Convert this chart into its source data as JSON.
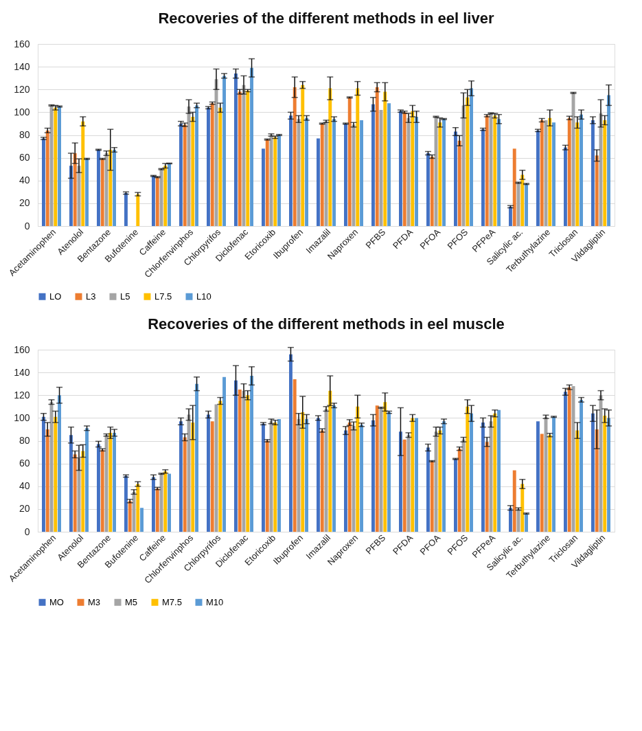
{
  "chart_data": [
    {
      "type": "bar",
      "title": "Recoveries of the different methods in eel liver",
      "ylim": [
        0,
        160
      ],
      "yticks": [
        0,
        20,
        40,
        60,
        80,
        100,
        120,
        140,
        160
      ],
      "grid": "y",
      "legend": "bottom",
      "categories": [
        "Acetaminophen",
        "Atenolol",
        "Bentazone",
        "Bufotenine",
        "Caffeine",
        "Chlorfenvinphos",
        "Chlorpyrifos",
        "Diclofenac",
        "Etoricoxib",
        "Ibuprofen",
        "Imazalil",
        "Naproxen",
        "PFBS",
        "PFDA",
        "PFOA",
        "PFOS",
        "PFPeA",
        "Salicylic ac.",
        "Terbuthylazine",
        "Triclosan",
        "Vildagliptin"
      ],
      "series": [
        {
          "name": "LO",
          "color": "#4472c4",
          "values": [
            77,
            53,
            67,
            29,
            44,
            90,
            104,
            134,
            68,
            97,
            77,
            90,
            107,
            101,
            64,
            83,
            85,
            17,
            84,
            69,
            93
          ],
          "errors": [
            1,
            11,
            0.5,
            1,
            0.5,
            2,
            1,
            4,
            null,
            3,
            null,
            0.5,
            6,
            1,
            1.5,
            3.5,
            1,
            1,
            1,
            2,
            3
          ]
        },
        {
          "name": "L3",
          "color": "#ed7d31",
          "values": [
            84,
            64,
            59,
            0,
            43,
            89,
            108,
            118,
            76,
            122,
            90,
            113,
            122,
            100,
            61,
            75,
            97,
            68,
            93,
            95,
            62
          ],
          "errors": [
            2,
            9,
            0.5,
            null,
            0.5,
            1.5,
            1,
            2,
            0.5,
            9,
            0.5,
            0.5,
            4,
            1,
            1.5,
            4.5,
            1,
            null,
            1.5,
            1.5,
            5
          ]
        },
        {
          "name": "L5",
          "color": "#a5a5a5",
          "values": [
            106,
            53,
            64,
            0,
            50,
            105,
            129,
            124,
            80,
            94,
            92,
            89,
            102,
            95,
            96,
            106,
            99,
            38,
            93,
            117,
            99
          ],
          "errors": [
            0.5,
            6,
            2,
            null,
            0.5,
            6,
            9,
            8,
            1,
            3,
            1,
            2,
            null,
            4,
            0.5,
            11,
            0.5,
            0.5,
            null,
            0.5,
            12
          ]
        },
        {
          "name": "L7.5",
          "color": "#ffc000",
          "values": [
            104,
            92,
            67,
            28,
            53,
            96,
            104,
            119,
            78,
            124,
            121,
            121,
            118,
            101,
            91,
            113,
            97,
            45,
            95,
            91,
            93
          ],
          "errors": [
            2,
            4,
            18,
            1.5,
            2,
            4,
            4,
            1,
            1,
            3,
            10,
            6,
            8,
            5,
            4,
            7,
            2,
            4,
            7,
            5,
            4
          ]
        },
        {
          "name": "L10",
          "color": "#5b9bd5",
          "values": [
            105,
            59,
            67,
            0,
            55,
            106,
            132,
            139,
            80,
            95,
            94,
            93,
            108,
            96,
            94,
            121,
            94,
            37,
            91,
            98,
            115
          ],
          "errors": [
            0.5,
            0.5,
            2,
            null,
            0.3,
            2,
            2,
            8,
            0.5,
            2,
            2,
            null,
            null,
            5,
            0.5,
            6.5,
            4,
            0.5,
            null,
            4,
            9
          ]
        }
      ]
    },
    {
      "type": "bar",
      "title": "Recoveries of the different methods in eel muscle",
      "ylim": [
        0,
        160
      ],
      "yticks": [
        0,
        20,
        40,
        60,
        80,
        100,
        120,
        140,
        160
      ],
      "grid": "y",
      "legend": "bottom",
      "categories": [
        "Acetaminophen",
        "Atenolol",
        "Bentazone",
        "Bufotenine",
        "Caffeine",
        "Chlorfenvinphos",
        "Chlorpyrifos",
        "Diclofenac",
        "Etoricoxib",
        "Ibuprofen",
        "Imazalil",
        "Naproxen",
        "PFBS",
        "PFDA",
        "PFOA",
        "PFOS",
        "PFPeA",
        "Salicylic ac.",
        "Terbuthylazine",
        "Triclosan",
        "Vildagliptin"
      ],
      "series": [
        {
          "name": "MO",
          "color": "#4472c4",
          "values": [
            101,
            85,
            77,
            49,
            48,
            97,
            103,
            133,
            95,
            156,
            100,
            89,
            98,
            88,
            74,
            64,
            96,
            21,
            97,
            123,
            104
          ],
          "errors": [
            3,
            7,
            2.5,
            1,
            2,
            3,
            3,
            13,
            1,
            6,
            2,
            3.5,
            5,
            21,
            3,
            0.5,
            4,
            2,
            null,
            3,
            7
          ]
        },
        {
          "name": "M3",
          "color": "#ed7d31",
          "values": [
            90,
            68,
            72,
            27,
            38,
            83,
            97,
            125,
            80,
            134,
            89,
            96,
            111,
            81,
            62,
            73,
            79,
            54,
            86,
            127,
            90
          ],
          "errors": [
            6,
            3,
            1,
            1.5,
            1,
            3,
            null,
            null,
            1,
            null,
            1.5,
            2.5,
            null,
            null,
            0.5,
            1.5,
            4,
            null,
            null,
            2,
            17
          ]
        },
        {
          "name": "M5",
          "color": "#a5a5a5",
          "values": [
            114,
            65,
            85,
            35,
            51,
            103,
            112,
            124,
            97,
            99,
            108,
            93,
            109,
            85,
            88,
            81,
            97,
            20,
            101,
            128,
            120
          ],
          "errors": [
            2,
            11,
            1,
            2,
            0.5,
            5,
            null,
            6,
            2,
            5,
            2,
            3.5,
            0.5,
            2,
            4,
            2,
            5,
            1,
            1.5,
            null,
            4
          ]
        },
        {
          "name": "M7.5",
          "color": "#ffc000",
          "values": [
            101,
            71,
            87,
            42,
            53,
            96,
            115,
            120,
            96,
            105,
            124,
            110,
            114,
            100,
            89,
            110,
            104,
            42,
            85,
            89,
            102
          ],
          "errors": [
            5,
            5.5,
            5,
            2,
            1.5,
            15,
            3,
            4,
            2,
            14,
            13,
            10,
            8,
            3,
            3,
            6,
            3,
            4,
            1.5,
            7,
            6
          ]
        },
        {
          "name": "M10",
          "color": "#5b9bd5",
          "values": [
            120,
            91,
            87,
            21,
            51,
            130,
            136,
            137,
            99,
            99,
            111,
            94,
            105,
            100,
            97,
            104,
            107,
            16,
            101,
            116,
            100
          ],
          "errors": [
            7,
            2,
            3,
            null,
            null,
            6,
            null,
            8,
            null,
            4,
            2,
            1.5,
            1,
            null,
            2,
            7,
            null,
            0.5,
            0.5,
            2,
            7
          ]
        }
      ]
    }
  ]
}
